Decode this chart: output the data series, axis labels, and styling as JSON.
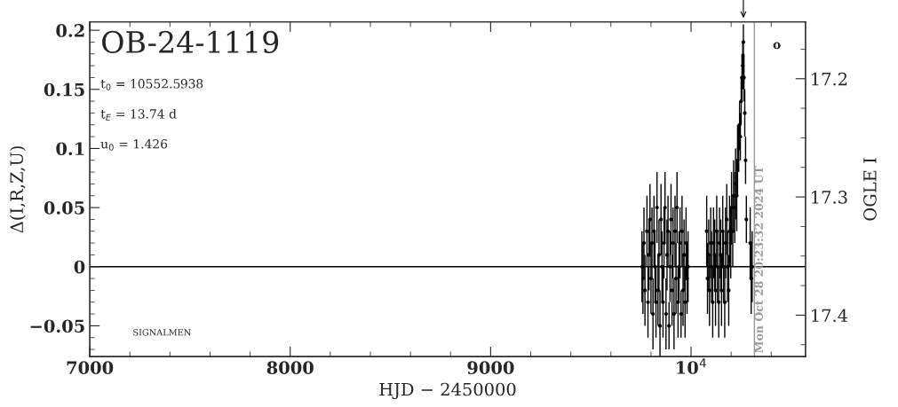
{
  "chart_data": {
    "type": "scatter",
    "title": "OB-24-1119",
    "xlabel": "HJD − 2450000",
    "ylabel": "Δ(I,R,Z,U)",
    "y2label": "OGLE I",
    "annotations": [
      "t$_{0}$ = 10552.5938",
      "t$_{E}$ = 13.74 d",
      "u$_{0}$ = 1.426",
      "SIGNALMEN",
      "o",
      "Mon Oct 28 20:23:32 2024 UT"
    ],
    "xlim": [
      7000,
      10571
    ],
    "xticks": [
      7000,
      8000,
      9000,
      {
        "value": 10000,
        "label": "10$^{4}$"
      }
    ],
    "ylim": [
      -0.076,
      0.207
    ],
    "yticks": [
      {
        "value": -0.05,
        "label": "−0.05"
      },
      0,
      0.05,
      0.1,
      0.15,
      0.2
    ],
    "y2lim": [
      17.435,
      17.152
    ],
    "y2ticks": [
      17.2,
      17.3,
      17.4
    ],
    "ref_lines": [
      {
        "axis": "y",
        "value": 0,
        "color": "#000000"
      },
      {
        "axis": "x",
        "value": 10316,
        "color": "#999999"
      }
    ],
    "marker": "circle",
    "grid": false,
    "series": [
      {
        "color": "#000000",
        "x": [
          9755,
          9760,
          9765,
          9770,
          9780,
          9785,
          9790,
          9795,
          9800,
          9805,
          9810,
          9815,
          9820,
          9825,
          9830,
          9835,
          9840,
          9845,
          9850,
          9855,
          9860,
          9865,
          9870,
          9875,
          9880,
          9885,
          9890,
          9895,
          9900,
          9905,
          9910,
          9915,
          9920,
          9925,
          9930,
          9935,
          9940,
          9945,
          9950,
          9955,
          9960,
          9965,
          9970,
          9975,
          9980,
          9985,
          10078,
          10082,
          10088,
          10092,
          10098,
          10102,
          10108,
          10112,
          10118,
          10122,
          10128,
          10132,
          10138,
          10142,
          10148,
          10152,
          10158,
          10162,
          10168,
          10172,
          10178,
          10182,
          10188,
          10192,
          10198,
          10202,
          10208,
          10212,
          10218,
          10222,
          10228,
          10232,
          10238,
          10242,
          10246,
          10250,
          10254,
          10258,
          10261,
          10264,
          10268,
          10272,
          10276,
          10295,
          10300,
          10305
        ],
        "values": [
          0.0,
          -0.01,
          0.02,
          -0.02,
          0.03,
          -0.03,
          0.01,
          0.04,
          -0.01,
          0.02,
          -0.04,
          0.03,
          0.0,
          -0.03,
          0.05,
          -0.02,
          0.01,
          -0.05,
          0.04,
          0.0,
          -0.03,
          0.02,
          0.05,
          -0.04,
          0.01,
          0.03,
          -0.05,
          0.0,
          0.04,
          -0.02,
          0.02,
          -0.04,
          0.03,
          -0.01,
          0.05,
          -0.03,
          0.0,
          0.02,
          -0.04,
          0.03,
          -0.02,
          0.01,
          -0.03,
          0.02,
          -0.01,
          0.0,
          0.03,
          -0.01,
          0.01,
          -0.02,
          0.02,
          0.0,
          -0.03,
          0.02,
          0.01,
          -0.02,
          0.03,
          0.0,
          -0.03,
          0.02,
          0.01,
          -0.02,
          0.03,
          0.0,
          -0.03,
          0.02,
          0.04,
          0.0,
          -0.02,
          0.03,
          0.02,
          0.05,
          0.03,
          0.06,
          0.05,
          0.07,
          0.06,
          0.09,
          0.1,
          0.12,
          0.11,
          0.14,
          0.16,
          0.17,
          0.19,
          0.16,
          0.13,
          0.09,
          0.04,
          0.02,
          -0.01,
          0.0
        ],
        "errors": [
          0.03,
          0.03,
          0.03,
          0.03,
          0.03,
          0.03,
          0.03,
          0.03,
          0.03,
          0.03,
          0.03,
          0.03,
          0.03,
          0.03,
          0.03,
          0.03,
          0.03,
          0.03,
          0.03,
          0.03,
          0.03,
          0.03,
          0.03,
          0.03,
          0.03,
          0.03,
          0.02,
          0.03,
          0.03,
          0.03,
          0.03,
          0.03,
          0.03,
          0.03,
          0.03,
          0.03,
          0.03,
          0.03,
          0.02,
          0.03,
          0.03,
          0.03,
          0.03,
          0.03,
          0.03,
          0.03,
          0.03,
          0.03,
          0.03,
          0.03,
          0.03,
          0.03,
          0.03,
          0.03,
          0.03,
          0.03,
          0.03,
          0.03,
          0.03,
          0.03,
          0.03,
          0.03,
          0.03,
          0.03,
          0.03,
          0.03,
          0.03,
          0.03,
          0.03,
          0.03,
          0.03,
          0.03,
          0.03,
          0.03,
          0.03,
          0.03,
          0.03,
          0.03,
          0.02,
          0.02,
          0.02,
          0.02,
          0.02,
          0.02,
          0.015,
          0.02,
          0.02,
          0.02,
          0.02,
          0.03,
          0.03,
          0.03
        ]
      }
    ]
  }
}
